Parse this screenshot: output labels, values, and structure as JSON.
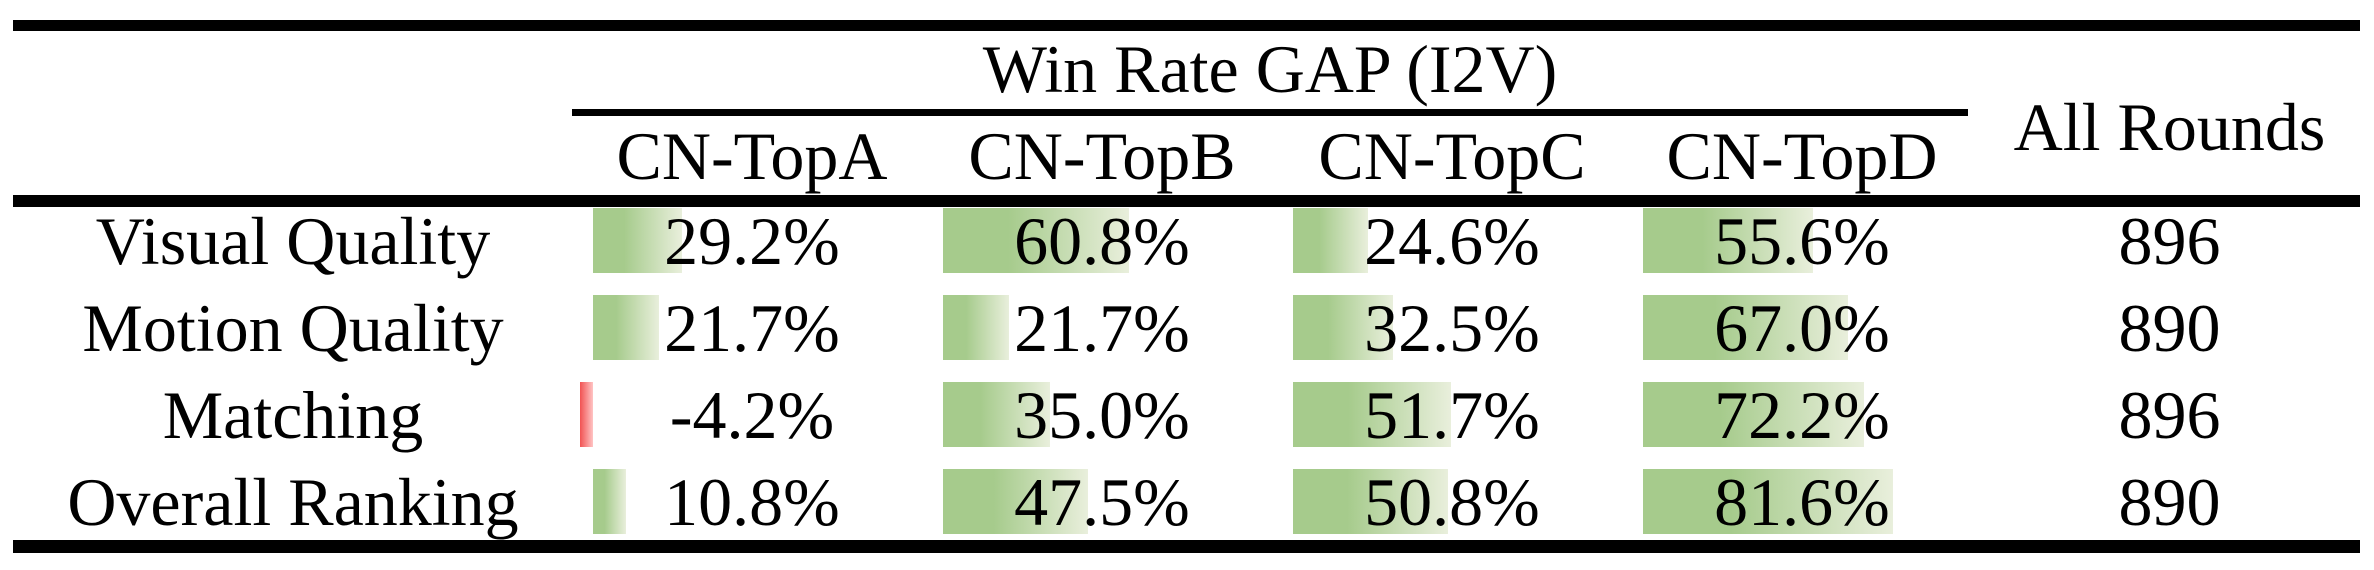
{
  "table": {
    "header": {
      "group_title": "Win Rate GAP (I2V)",
      "columns": [
        "CN-TopA",
        "CN-TopB",
        "CN-TopC",
        "CN-TopD"
      ],
      "all_rounds_label": "All Rounds"
    },
    "rows": [
      {
        "label": "Visual Quality",
        "cells": [
          {
            "display": "29.2%",
            "value": 29.2
          },
          {
            "display": "60.8%",
            "value": 60.8
          },
          {
            "display": "24.6%",
            "value": 24.6
          },
          {
            "display": "55.6%",
            "value": 55.6
          }
        ],
        "all_rounds": "896"
      },
      {
        "label": "Motion Quality",
        "cells": [
          {
            "display": "21.7%",
            "value": 21.7
          },
          {
            "display": "21.7%",
            "value": 21.7
          },
          {
            "display": "32.5%",
            "value": 32.5
          },
          {
            "display": "67.0%",
            "value": 67.0
          }
        ],
        "all_rounds": "890"
      },
      {
        "label": "Matching",
        "cells": [
          {
            "display": "-4.2%",
            "value": -4.2
          },
          {
            "display": "35.0%",
            "value": 35.0
          },
          {
            "display": "51.7%",
            "value": 51.7
          },
          {
            "display": "72.2%",
            "value": 72.2
          }
        ],
        "all_rounds": "896"
      },
      {
        "label": "Overall Ranking",
        "cells": [
          {
            "display": "10.8%",
            "value": 10.8
          },
          {
            "display": "47.5%",
            "value": 47.5
          },
          {
            "display": "50.8%",
            "value": 50.8
          },
          {
            "display": "81.6%",
            "value": 81.6
          }
        ],
        "all_rounds": "890"
      }
    ],
    "colors": {
      "bar_positive_start": "#a6cb8c",
      "bar_positive_end": "#e9efdc",
      "bar_negative_start": "#f15353",
      "bar_negative_end": "#ffc4c4",
      "rule": "#000000"
    }
  },
  "chart_data": {
    "type": "table",
    "title": "Win Rate GAP (I2V)",
    "columns": [
      "",
      "CN-TopA",
      "CN-TopB",
      "CN-TopC",
      "CN-TopD",
      "All Rounds"
    ],
    "rows": [
      [
        "Visual Quality",
        29.2,
        60.8,
        24.6,
        55.6,
        896
      ],
      [
        "Motion Quality",
        21.7,
        21.7,
        32.5,
        67.0,
        890
      ],
      [
        "Matching",
        -4.2,
        35.0,
        51.7,
        72.2,
        896
      ],
      [
        "Overall Ranking",
        10.8,
        47.5,
        50.8,
        81.6,
        890
      ]
    ],
    "notes": "Percent cells carry proportional data bars (green positive, red negative), bar length = value, full scale ~100% = column width"
  }
}
